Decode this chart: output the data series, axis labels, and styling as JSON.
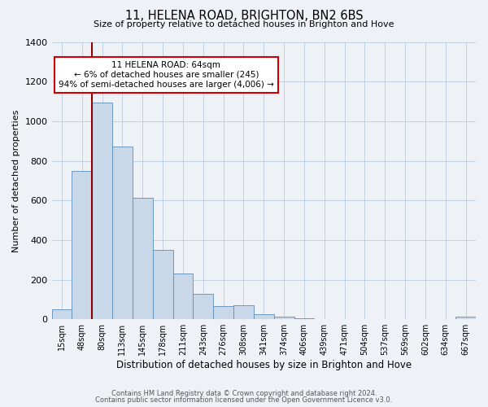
{
  "title": "11, HELENA ROAD, BRIGHTON, BN2 6BS",
  "subtitle": "Size of property relative to detached houses in Brighton and Hove",
  "xlabel": "Distribution of detached houses by size in Brighton and Hove",
  "ylabel": "Number of detached properties",
  "bar_labels": [
    "15sqm",
    "48sqm",
    "80sqm",
    "113sqm",
    "145sqm",
    "178sqm",
    "211sqm",
    "243sqm",
    "276sqm",
    "308sqm",
    "341sqm",
    "374sqm",
    "406sqm",
    "439sqm",
    "471sqm",
    "504sqm",
    "537sqm",
    "569sqm",
    "602sqm",
    "634sqm",
    "667sqm"
  ],
  "bar_values": [
    50,
    750,
    1095,
    870,
    615,
    350,
    230,
    130,
    65,
    70,
    25,
    15,
    5,
    0,
    0,
    0,
    0,
    0,
    0,
    0,
    15
  ],
  "bar_color": "#c8d8e8",
  "bar_edge_color": "#5b8db8",
  "vline_color": "#8b0000",
  "ylim": [
    0,
    1400
  ],
  "yticks": [
    0,
    200,
    400,
    600,
    800,
    1000,
    1200,
    1400
  ],
  "annotation_title": "11 HELENA ROAD: 64sqm",
  "annotation_line1": "← 6% of detached houses are smaller (245)",
  "annotation_line2": "94% of semi-detached houses are larger (4,006) →",
  "annotation_box_color": "#ffffff",
  "annotation_box_edge": "#cc0000",
  "footer1": "Contains HM Land Registry data © Crown copyright and database right 2024.",
  "footer2": "Contains public sector information licensed under the Open Government Licence v3.0.",
  "bg_color": "#eef2f7",
  "plot_bg_color": "#eef2f7"
}
